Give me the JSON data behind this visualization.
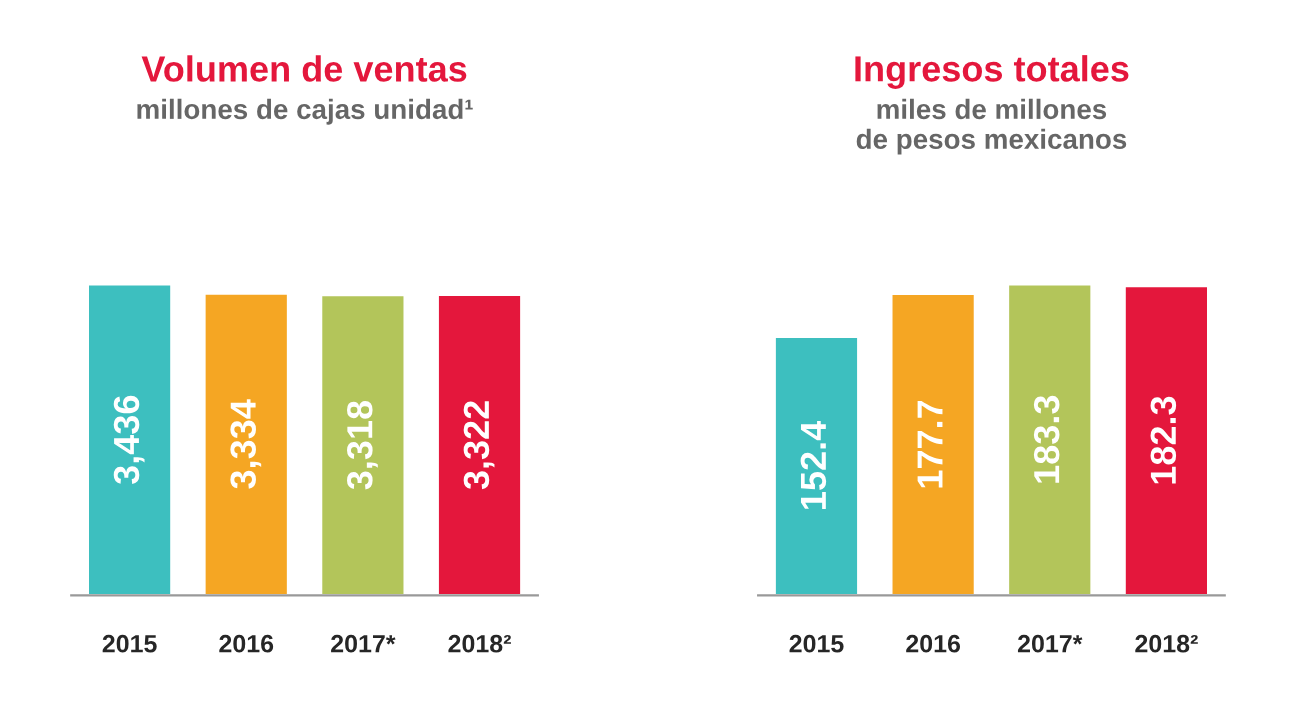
{
  "chart_data": [
    {
      "type": "bar",
      "title": "Volumen de ventas",
      "subtitle": "millones de cajas unidad¹",
      "categories": [
        "2015",
        "2016",
        "2017*",
        "2018²"
      ],
      "values": [
        3436,
        3334,
        3318,
        3322
      ],
      "value_labels": [
        "3,436",
        "3,334",
        "3,318",
        "3,322"
      ],
      "colors": [
        "#3dbfbf",
        "#f5a623",
        "#b3c55a",
        "#e4173c"
      ],
      "tick_labels": "x"
    },
    {
      "type": "bar",
      "title": "Ingresos totales",
      "subtitle": "miles de millones\nde pesos mexicanos",
      "categories": [
        "2015",
        "2016",
        "2017*",
        "2018²"
      ],
      "values": [
        152.4,
        177.7,
        183.3,
        182.3
      ],
      "value_labels": [
        "152.4",
        "177.7",
        "183.3",
        "182.3"
      ],
      "colors": [
        "#3dbfbf",
        "#f5a623",
        "#b3c55a",
        "#e4173c"
      ],
      "tick_labels": "x"
    }
  ]
}
